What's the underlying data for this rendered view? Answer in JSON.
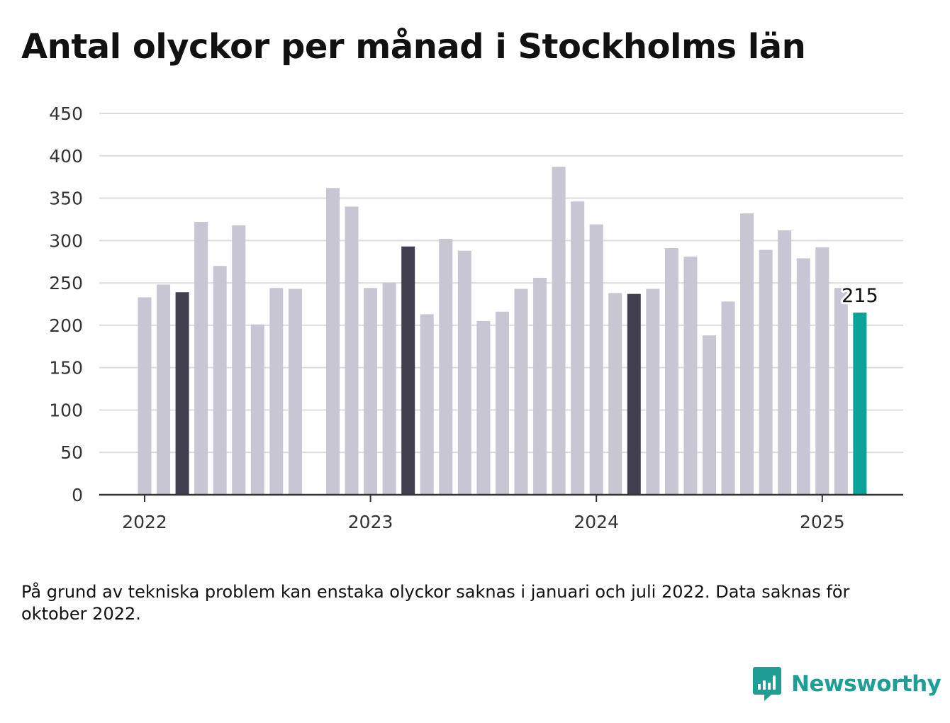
{
  "chart_data": {
    "type": "bar",
    "title": "Antal olyckor per månad i Stockholms län",
    "xlabel": "",
    "ylabel": "",
    "ylim": [
      0,
      450
    ],
    "yticks": [
      0,
      50,
      100,
      150,
      200,
      250,
      300,
      350,
      400,
      450
    ],
    "xtick_labels": [
      "2022",
      "2023",
      "2024",
      "2025"
    ],
    "grid": true,
    "x": [
      "2022-01",
      "2022-02",
      "2022-03",
      "2022-04",
      "2022-05",
      "2022-06",
      "2022-07",
      "2022-08",
      "2022-09",
      "2022-10",
      "2022-11",
      "2022-12",
      "2023-01",
      "2023-02",
      "2023-03",
      "2023-04",
      "2023-05",
      "2023-06",
      "2023-07",
      "2023-08",
      "2023-09",
      "2023-10",
      "2023-11",
      "2023-12",
      "2024-01",
      "2024-02",
      "2024-03",
      "2024-04",
      "2024-05",
      "2024-06",
      "2024-07",
      "2024-08",
      "2024-09",
      "2024-10",
      "2024-11",
      "2024-12",
      "2025-01",
      "2025-02",
      "2025-03"
    ],
    "values": [
      233,
      248,
      239,
      322,
      270,
      318,
      201,
      244,
      243,
      null,
      362,
      340,
      244,
      250,
      293,
      213,
      302,
      288,
      205,
      216,
      243,
      256,
      387,
      346,
      319,
      238,
      237,
      243,
      291,
      281,
      188,
      228,
      332,
      289,
      312,
      279,
      292,
      244,
      215
    ],
    "highlight_months": [
      "2022-03",
      "2023-03",
      "2024-03"
    ],
    "latest_value_label": "215",
    "colors": {
      "default": "#c8c6d2",
      "highlight": "#42404f",
      "latest": "#0ba39a"
    }
  },
  "note": "På grund av tekniska problem kan enstaka olyckor saknas i januari och juli 2022. Data saknas för oktober 2022.",
  "brand": {
    "name": "Newsworthy",
    "icon": "chart-bubble-icon",
    "color": "#1f9e96"
  }
}
